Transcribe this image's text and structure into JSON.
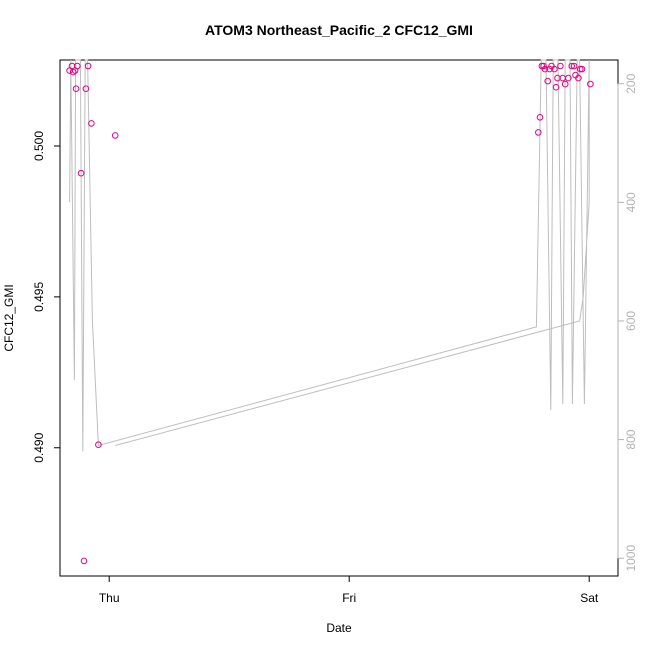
{
  "chart_data": {
    "type": "scatter",
    "title": "ATOM3 Northeast_Pacific_2 CFC12_GMI",
    "xlabel": "Date",
    "ylabel": "CFC12_GMI",
    "x_ticks": [
      {
        "day": 0,
        "label": "Thu"
      },
      {
        "day": 1,
        "label": "Fri"
      },
      {
        "day": 2,
        "label": "Sat"
      }
    ],
    "y_ticks": [
      0.49,
      0.495,
      0.5
    ],
    "y_tick_labels": [
      "0.490",
      "0.495",
      "0.500"
    ],
    "ylim": [
      0.48575,
      0.50285
    ],
    "xlim": [
      -0.205,
      2.12
    ],
    "right_axis": {
      "ticks": [
        200,
        400,
        600,
        800,
        1000
      ],
      "tick_labels": [
        "200",
        "400",
        "600",
        "800",
        "1000"
      ],
      "lim": [
        1030,
        160
      ],
      "color": "#b3b3b3",
      "note": "inverted pressure-like axis drawn in grey"
    },
    "grid": false,
    "points_color": "#e6007e",
    "series": [
      {
        "marker": "open-circle",
        "color": "#e6007e",
        "x": [
          -0.165,
          -0.155,
          -0.15,
          -0.142,
          -0.138,
          -0.133,
          -0.117,
          -0.105,
          -0.097,
          -0.088,
          -0.074,
          -0.045,
          0.025,
          1.788,
          1.795,
          1.803,
          1.81,
          1.816,
          1.827,
          1.835,
          1.843,
          1.855,
          1.862,
          1.868,
          1.88,
          1.889,
          1.9,
          1.913,
          1.927,
          1.937,
          1.943,
          1.955,
          1.963,
          1.97,
          2.005
        ],
        "y": [
          0.5025,
          0.50265,
          0.50245,
          0.5025,
          0.5019,
          0.50265,
          0.4991,
          0.48625,
          0.5019,
          0.50265,
          0.50075,
          0.4901,
          0.50035,
          0.50045,
          0.50095,
          0.50265,
          0.50265,
          0.50255,
          0.50215,
          0.50255,
          0.50265,
          0.50255,
          0.50195,
          0.50225,
          0.50265,
          0.50225,
          0.50205,
          0.50225,
          0.50265,
          0.50265,
          0.50235,
          0.50225,
          0.50255,
          0.50255,
          0.50205
        ]
      }
    ],
    "profile_line": {
      "color": "#bebebe",
      "right_axis_values": true,
      "x": [
        -0.165,
        -0.16,
        -0.145,
        -0.14,
        -0.12,
        -0.11,
        -0.1,
        -0.09,
        -0.07,
        -0.045,
        1.78,
        1.8,
        1.82,
        1.84,
        1.85,
        1.87,
        1.89,
        1.9,
        1.92,
        1.93,
        1.95,
        1.96,
        1.98,
        2.0,
        2.0,
        1.975,
        1.96,
        0.025
      ],
      "y": [
        400,
        160,
        700,
        160,
        160,
        820,
        160,
        160,
        600,
        810,
        610,
        160,
        160,
        750,
        160,
        160,
        740,
        160,
        160,
        740,
        160,
        160,
        740,
        160,
        400,
        560,
        600,
        810
      ]
    }
  }
}
